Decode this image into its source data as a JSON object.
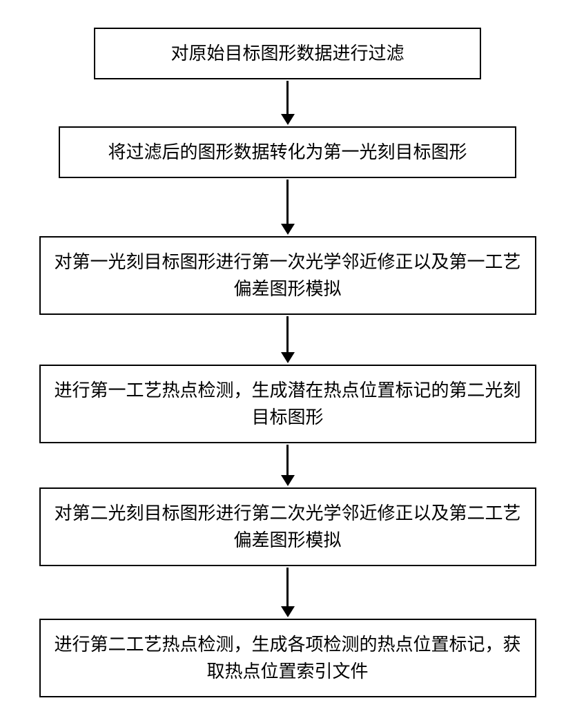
{
  "flowchart": {
    "type": "flowchart",
    "direction": "vertical",
    "background_color": "#ffffff",
    "box_border_color": "#000000",
    "box_border_width": 2.5,
    "box_bg_color": "#ffffff",
    "text_color": "#000000",
    "font_size": 26,
    "arrow_color": "#000000",
    "arrow_line_width": 2.5,
    "steps": [
      {
        "id": "step1",
        "text": "对原始目标图形数据进行过滤",
        "box_width_ratio": 0.78,
        "arrow_length": 48
      },
      {
        "id": "step2",
        "text": "将过滤后的图形数据转化为第一光刻目标图形",
        "box_width_ratio": 0.92,
        "arrow_length": 64
      },
      {
        "id": "step3",
        "text": "对第一光刻目标图形进行第一次光学邻近修正以及第一工艺偏差图形模拟",
        "box_width_ratio": 1.0,
        "arrow_length": 52
      },
      {
        "id": "step4",
        "text": "进行第一工艺热点检测，生成潜在热点位置标记的第二光刻目标图形",
        "box_width_ratio": 1.0,
        "arrow_length": 44
      },
      {
        "id": "step5",
        "text": "对第二光刻目标图形进行第二次光学邻近修正以及第二工艺偏差图形模拟",
        "box_width_ratio": 1.0,
        "arrow_length": 56
      },
      {
        "id": "step6",
        "text": "进行第二工艺热点检测，生成各项检测的热点位置标记，获取热点位置索引文件",
        "box_width_ratio": 1.0,
        "arrow_length": 0
      }
    ]
  }
}
